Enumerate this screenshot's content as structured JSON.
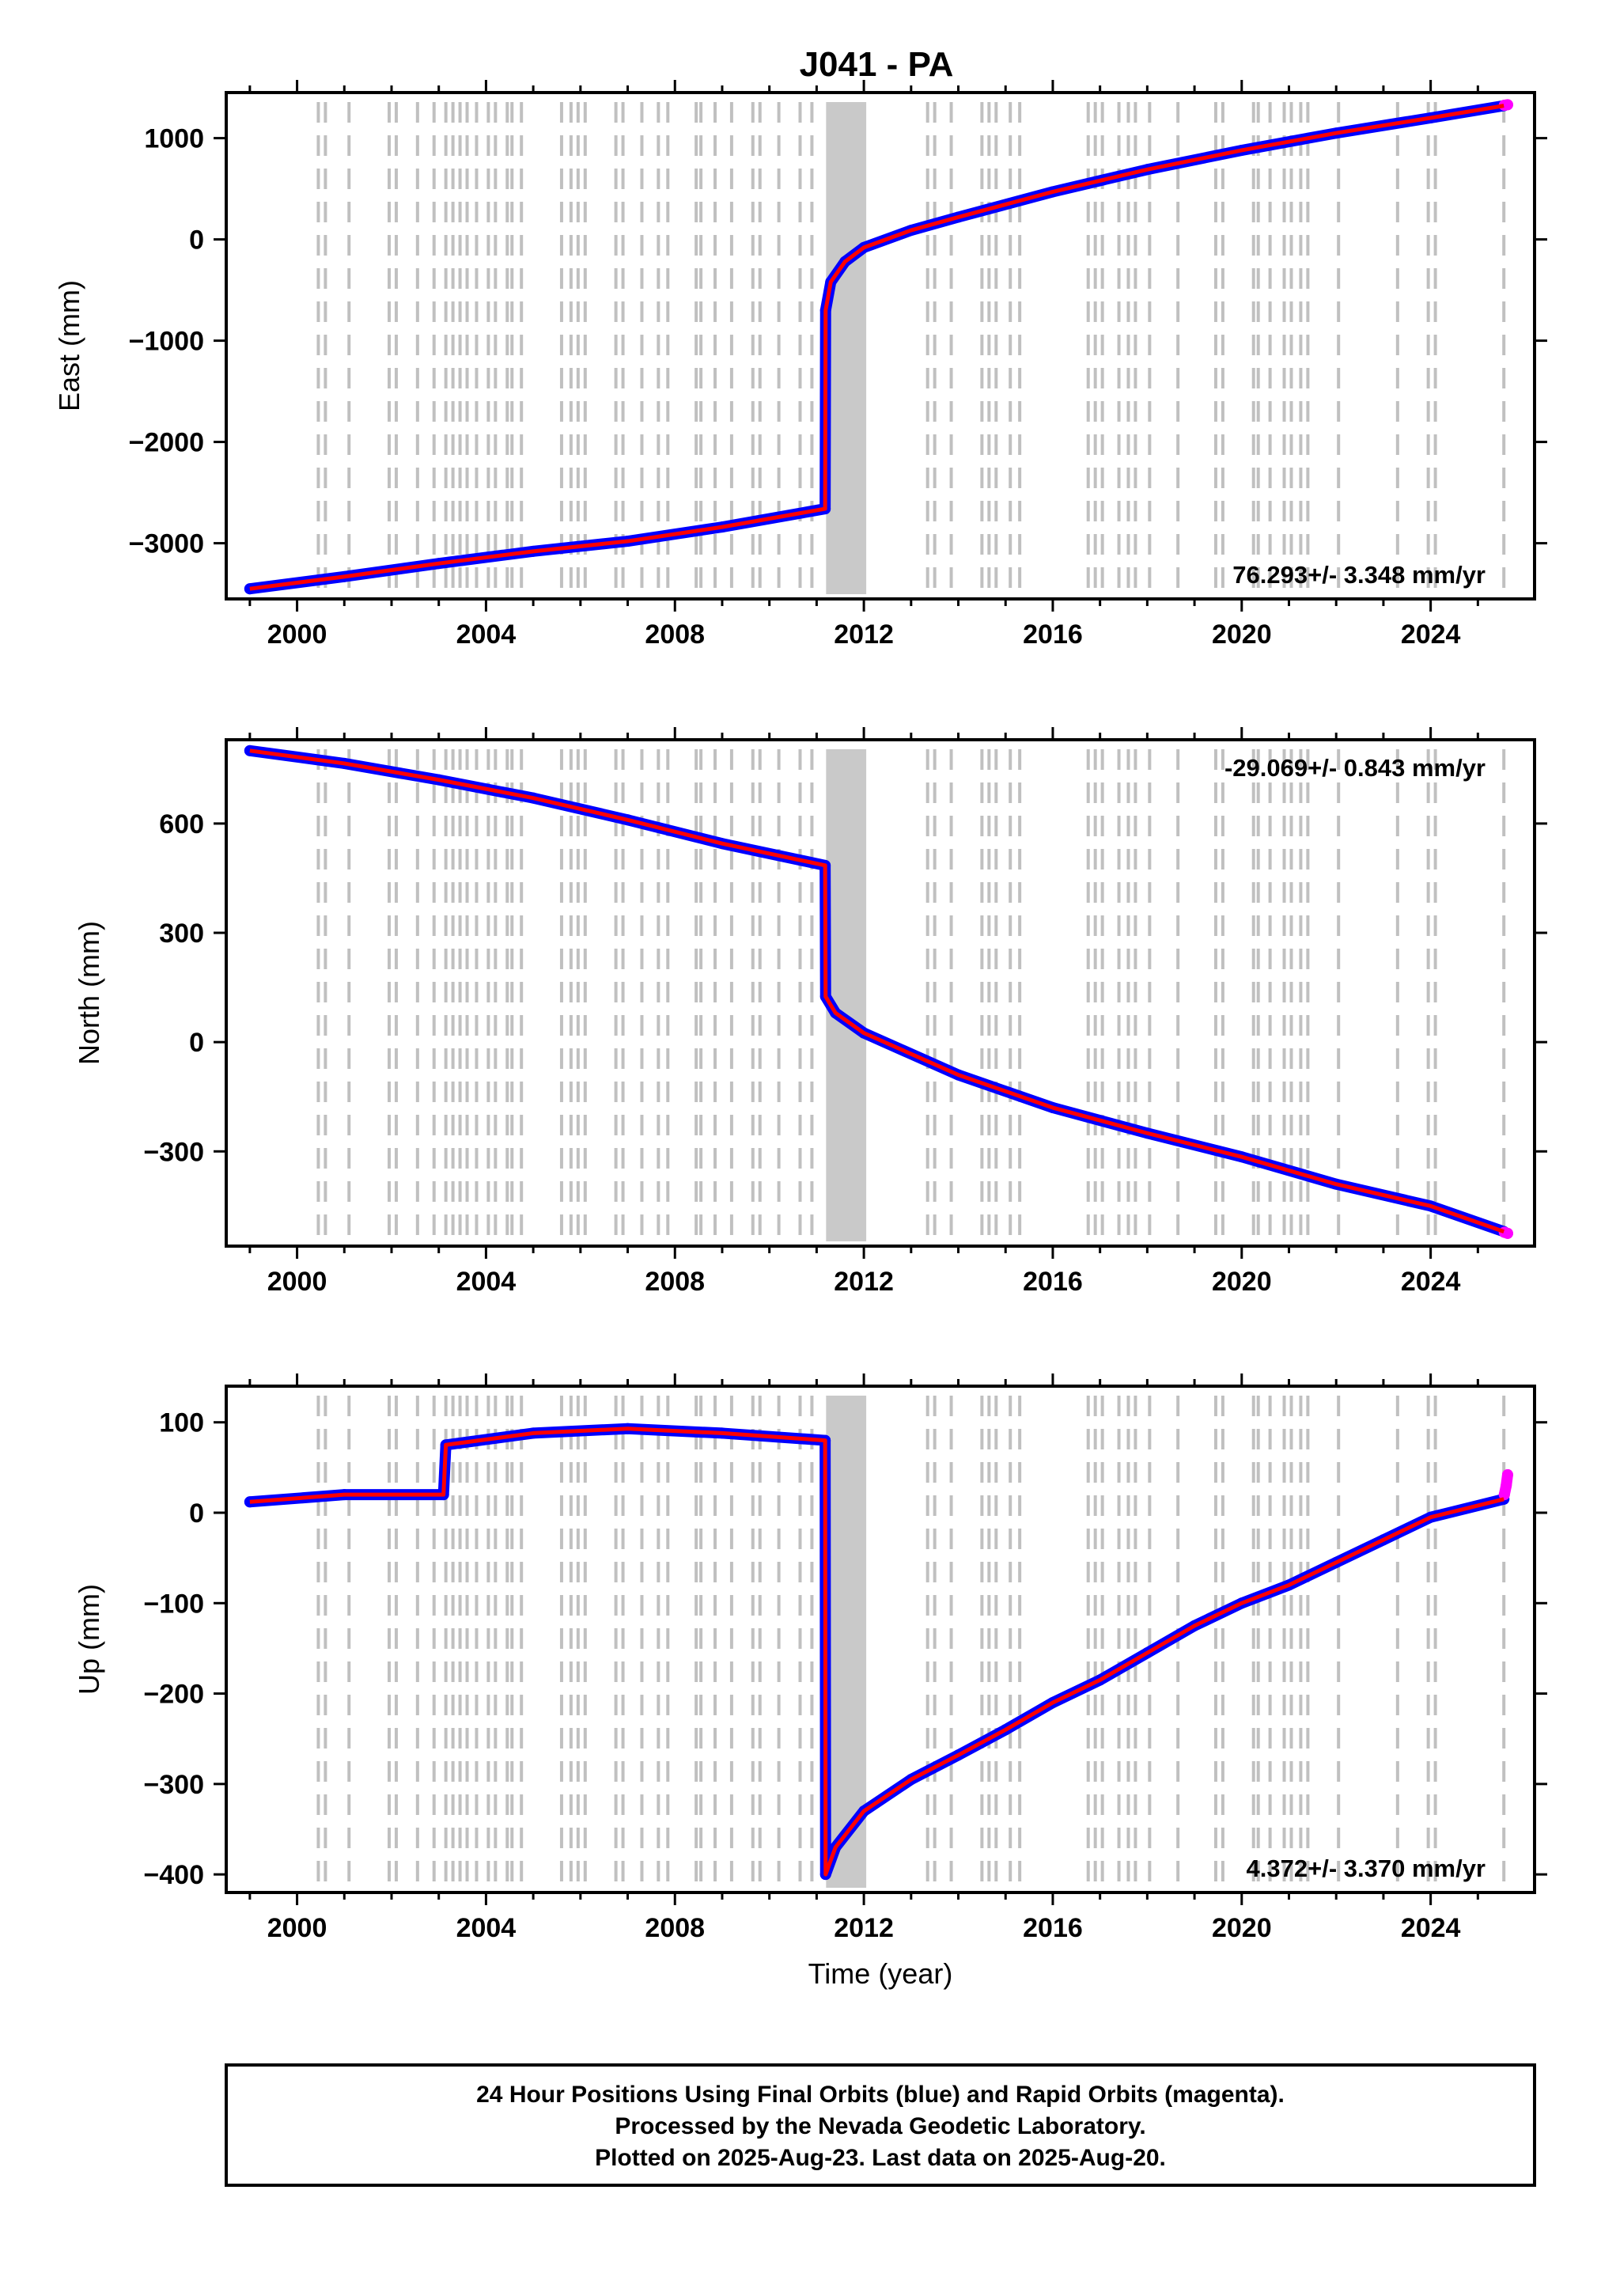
{
  "page": {
    "title": "J041 - PA"
  },
  "footer": {
    "line1": "24 Hour Positions Using Final Orbits (blue) and Rapid Orbits (magenta).",
    "line2": "Processed by the Nevada Geodetic Laboratory.",
    "line3": "Plotted on 2025-Aug-23. Last data on 2025-Aug-20."
  },
  "colors": {
    "final_orbits": "#0000ff",
    "rapid_orbits": "#ff00ff",
    "model_fit": "#ff0000",
    "events": "#c0c0c0"
  },
  "chart_data": [
    {
      "type": "scatter",
      "ylabel": "East (mm)",
      "xlim": [
        1998.5,
        2026.2
      ],
      "ylim": [
        -3550,
        1450
      ],
      "xticks": [
        2000,
        2004,
        2008,
        2012,
        2016,
        2020,
        2024
      ],
      "yticks": [
        -3000,
        -2000,
        -1000,
        0,
        1000
      ],
      "rate": "76.293+/- 3.348 mm/yr",
      "rate_position": "bottom-right",
      "series": [
        {
          "color": "#0000ff",
          "x": [
            1999.0,
            2001.0,
            2003.0,
            2005.0,
            2007.0,
            2009.0,
            2011.18,
            2011.19,
            2011.3,
            2011.6,
            2012.0,
            2013.0,
            2014.0,
            2016.0,
            2018.0,
            2020.0,
            2022.0,
            2024.0,
            2025.55
          ],
          "y": [
            -3450,
            -3330,
            -3200,
            -3080,
            -2980,
            -2840,
            -2660,
            -700,
            -420,
            -220,
            -80,
            90,
            220,
            470,
            690,
            880,
            1050,
            1200,
            1320
          ]
        },
        {
          "color": "#ff00ff",
          "x": [
            2025.56,
            2025.63
          ],
          "y": [
            1325,
            1330
          ]
        }
      ]
    },
    {
      "type": "scatter",
      "ylabel": "North (mm)",
      "xlim": [
        1998.5,
        2026.2
      ],
      "ylim": [
        -560,
        830
      ],
      "xticks": [
        2000,
        2004,
        2008,
        2012,
        2016,
        2020,
        2024
      ],
      "yticks": [
        -300,
        0,
        300,
        600
      ],
      "rate": "-29.069+/- 0.843 mm/yr",
      "rate_position": "top-right",
      "series": [
        {
          "color": "#0000ff",
          "x": [
            1999.0,
            2001.0,
            2003.0,
            2005.0,
            2007.0,
            2009.0,
            2011.18,
            2011.19,
            2011.4,
            2012.0,
            2014.0,
            2016.0,
            2018.0,
            2020.0,
            2022.0,
            2024.0,
            2025.55
          ],
          "y": [
            800,
            765,
            720,
            670,
            610,
            545,
            485,
            125,
            80,
            25,
            -90,
            -180,
            -250,
            -315,
            -390,
            -450,
            -520
          ]
        },
        {
          "color": "#ff00ff",
          "x": [
            2025.56,
            2025.63
          ],
          "y": [
            -522,
            -525
          ]
        }
      ]
    },
    {
      "type": "scatter",
      "ylabel": "Up (mm)",
      "xlabel": "Time (year)",
      "xlim": [
        1998.5,
        2026.2
      ],
      "ylim": [
        -420,
        140
      ],
      "xticks": [
        2000,
        2004,
        2008,
        2012,
        2016,
        2020,
        2024
      ],
      "yticks": [
        -400,
        -300,
        -200,
        -100,
        0,
        100
      ],
      "rate": "4.372+/- 3.370 mm/yr",
      "rate_position": "bottom-right",
      "series": [
        {
          "color": "#0000ff",
          "x": [
            1999.0,
            2001.0,
            2003.1,
            2003.15,
            2005.0,
            2007.0,
            2009.0,
            2011.18,
            2011.19,
            2011.4,
            2012.0,
            2013.0,
            2014.0,
            2015.0,
            2016.0,
            2017.0,
            2018.0,
            2019.0,
            2020.0,
            2021.0,
            2022.0,
            2023.0,
            2024.0,
            2025.55
          ],
          "y": [
            12,
            20,
            20,
            75,
            88,
            93,
            88,
            80,
            -400,
            -370,
            -330,
            -295,
            -268,
            -240,
            -210,
            -185,
            -155,
            -125,
            -100,
            -80,
            -55,
            -30,
            -5,
            15
          ]
        },
        {
          "color": "#ff00ff",
          "x": [
            2025.56,
            2025.6,
            2025.63
          ],
          "y": [
            20,
            30,
            42
          ]
        }
      ]
    }
  ]
}
